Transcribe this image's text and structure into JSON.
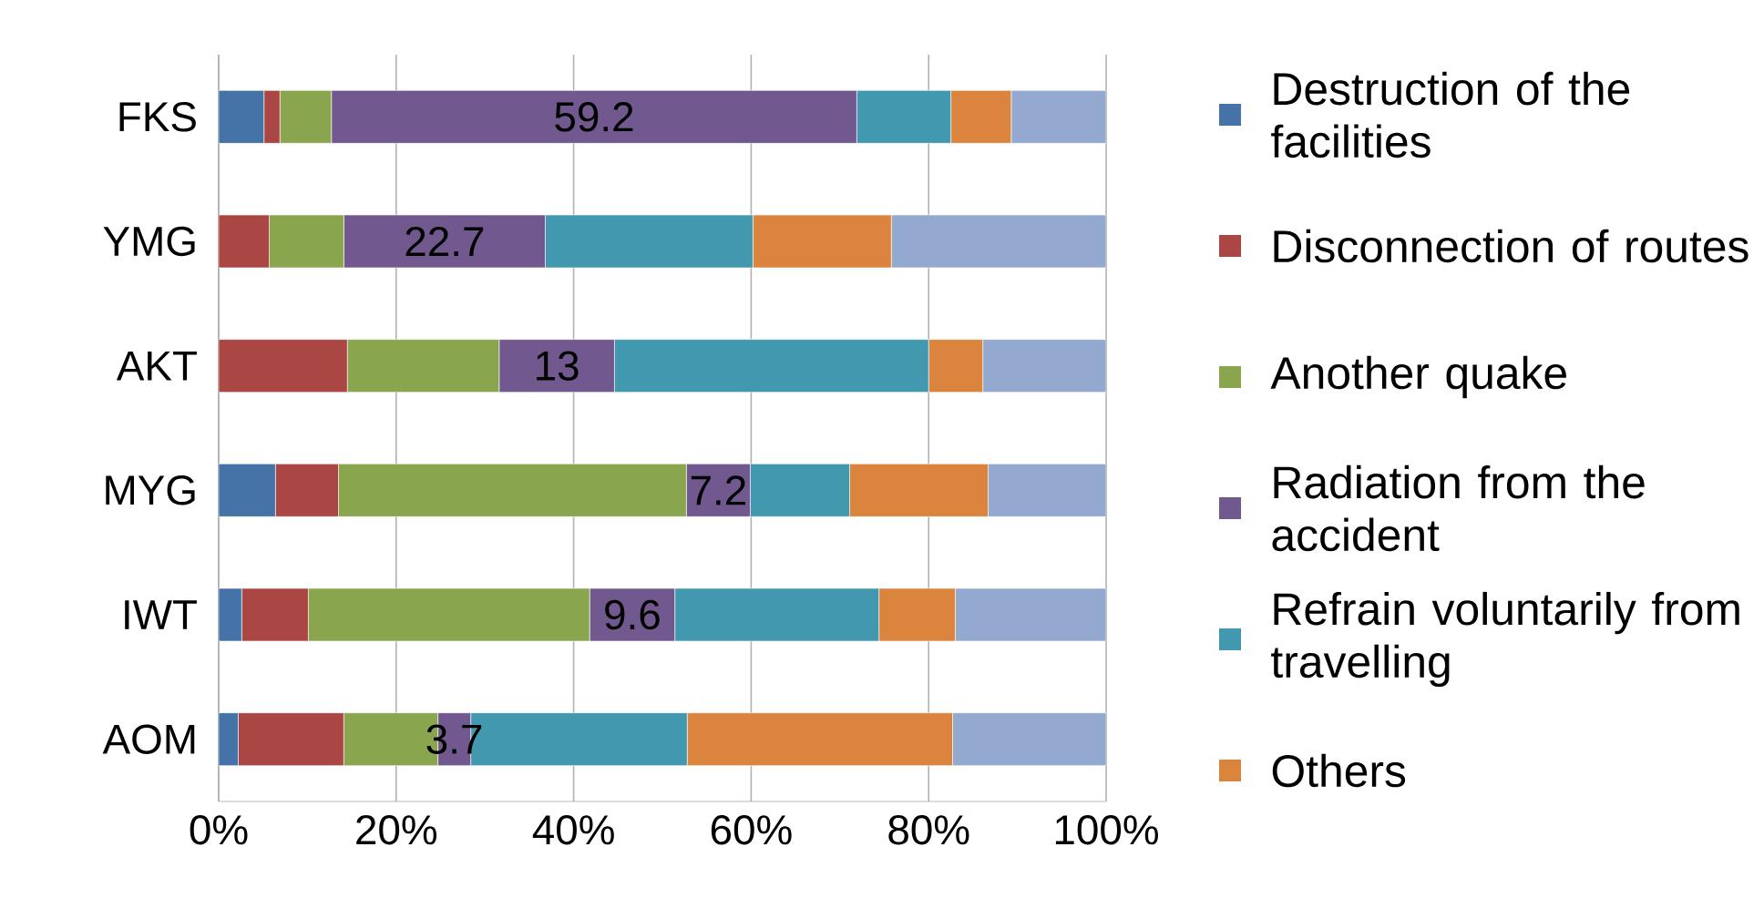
{
  "chart_data": {
    "type": "bar",
    "orientation": "horizontal",
    "stacked": true,
    "categories": [
      "FKS",
      "YMG",
      "AKT",
      "MYG",
      "IWT",
      "AOM"
    ],
    "series": [
      {
        "name": "Destruction of the facilities",
        "color": "#4572a7",
        "values": [
          5.1,
          0,
          0,
          6.4,
          2.6,
          2.2
        ]
      },
      {
        "name": "Disconnection of routes",
        "color": "#aa4643",
        "values": [
          1.8,
          5.7,
          14.5,
          7.1,
          7.5,
          11.9
        ]
      },
      {
        "name": "Another quake",
        "color": "#89a54e",
        "values": [
          5.8,
          8.4,
          17.1,
          39.2,
          31.7,
          10.6
        ]
      },
      {
        "name": "Radiation from the accident",
        "color": "#71588f",
        "values": [
          59.2,
          22.7,
          13,
          7.2,
          9.6,
          3.7
        ],
        "value_labels": [
          "59.2",
          "22.7",
          "13",
          "7.2",
          "9.6",
          "3.7"
        ]
      },
      {
        "name": "Refrain voluntarily from travelling",
        "color": "#4198af",
        "values": [
          10.6,
          23.4,
          35.4,
          11.2,
          23.0,
          24.4
        ]
      },
      {
        "name": "Others",
        "color": "#db843d",
        "values": [
          6.8,
          15.6,
          6.1,
          15.6,
          8.6,
          29.9
        ]
      },
      {
        "color": "#93a9cf",
        "values": [
          10.7,
          24.2,
          13.9,
          13.3,
          17.0,
          17.3
        ]
      }
    ],
    "xlim": [
      0,
      100
    ],
    "xticks": [
      {
        "value": 0,
        "label": "0%"
      },
      {
        "value": 20,
        "label": "20%"
      },
      {
        "value": 40,
        "label": "40%"
      },
      {
        "value": 60,
        "label": "60%"
      },
      {
        "value": 80,
        "label": "80%"
      },
      {
        "value": 100,
        "label": "100%"
      }
    ],
    "grid": "x",
    "legend": "right"
  }
}
